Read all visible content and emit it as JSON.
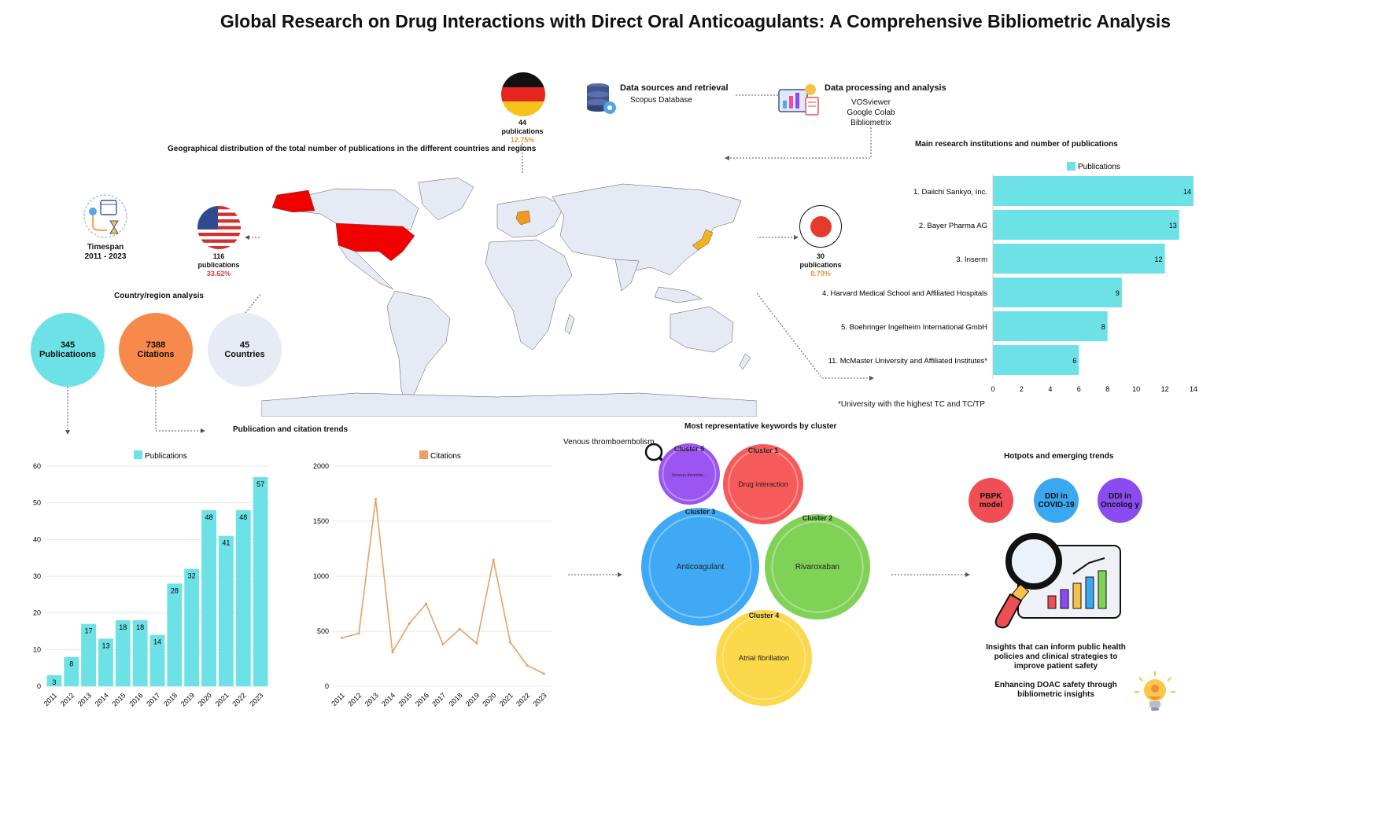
{
  "title": "Global Research on Drug Interactions with Direct Oral Anticoagulants: A Comprehensive Bibliometric Analysis",
  "data_sources": {
    "title": "Data sources and retrieval",
    "value": "Scopus Database"
  },
  "data_processing": {
    "title": "Data processing and analysis",
    "tools": [
      "VOSviewer",
      "Google Colab",
      "Bibliometrix"
    ]
  },
  "geo_title": "Geographical distribution of the total number of publications in the different countries and regions",
  "germany": {
    "count": "44",
    "label": "publications",
    "pct": "12.75%"
  },
  "usa": {
    "count": "116",
    "label": "publications",
    "pct": "33.62%"
  },
  "japan": {
    "count": "30",
    "label": "publications",
    "pct": "8.70%"
  },
  "timespan": {
    "label": "Timespan",
    "value": "2011 - 2023"
  },
  "country_analysis_title": "Country/region analysis",
  "stats": [
    {
      "value": "345",
      "label": "Publicatioons",
      "color": "#6de2e6"
    },
    {
      "value": "7388",
      "label": "Citations",
      "color": "#f7894a"
    },
    {
      "value": "45",
      "label": "Countries",
      "color": "#e6ebf5"
    }
  ],
  "trends_title": "Publication and citation trends",
  "institutions_title": "Main research institutions and number of publications",
  "institutions_note": "*University with the highest TC and TC/TP",
  "keywords_title": "Most representative keywords by cluster",
  "hotspots_title": "Hotpots and emerging trends",
  "hotspots": [
    {
      "label": "PBPK model",
      "color": "#f04e55"
    },
    {
      "label": "DDI in COVID-19",
      "color": "#3aa8f0"
    },
    {
      "label": "DDI in Oncolog y",
      "color": "#8a4cf0"
    }
  ],
  "insight_text": "Insights that can inform public health policies and clinical strategies to improve patient safety",
  "enhance_text": "Enhancing DOAC safety through bibliometric insights",
  "clusters": {
    "zoom_label": "Venous thromboembolism",
    "items": [
      {
        "cluster": "Cluster 5",
        "keyword": "Venous thrombo...",
        "color": "#9b55f2"
      },
      {
        "cluster": "Cluster 1",
        "keyword": "Drug interaction",
        "color": "#f75a5a"
      },
      {
        "cluster": "Cluster 3",
        "keyword": "Anticoagulant",
        "color": "#3fa9f5"
      },
      {
        "cluster": "Cluster 2",
        "keyword": "Rivaroxaban",
        "color": "#7fd255"
      },
      {
        "cluster": "Cluster 4",
        "keyword": "Atrial fibrillation",
        "color": "#fbd94a"
      }
    ]
  },
  "chart_data": [
    {
      "type": "bar",
      "orientation": "horizontal",
      "title": "Main research institutions and number of publications",
      "legend": "Publications",
      "legend_position": "top",
      "categories": [
        "1. Daiichi Sankyo, Inc.",
        "2. Bayer Pharma AG",
        "3. Inserm",
        "4. Harvard Medical School and Affiliated Hospitals",
        "5. Boehringer Ingelheim International GmbH",
        "11. McMaster University and Affiliated Institutes*"
      ],
      "values": [
        14,
        13,
        12,
        9,
        8,
        6
      ],
      "xlim": [
        0,
        14
      ],
      "xticks": [
        0,
        2,
        4,
        6,
        8,
        10,
        12,
        14
      ],
      "color": "#6de2e6"
    },
    {
      "type": "bar",
      "legend": "Publications",
      "legend_position": "top",
      "categories": [
        "2011",
        "2012",
        "2013",
        "2014",
        "2015",
        "2016",
        "2017",
        "2018",
        "2019",
        "2020",
        "2021",
        "2022",
        "2023"
      ],
      "values": [
        3,
        8,
        17,
        13,
        18,
        18,
        14,
        28,
        32,
        48,
        41,
        48,
        57
      ],
      "ylim": [
        0,
        60
      ],
      "yticks": [
        0,
        10,
        20,
        30,
        40,
        50,
        60
      ],
      "grid": true,
      "color": "#6de2e6"
    },
    {
      "type": "line",
      "legend": "Citations",
      "legend_position": "top",
      "categories": [
        "2011",
        "2012",
        "2013",
        "2014",
        "2015",
        "2016",
        "2017",
        "2018",
        "2019",
        "2020",
        "2021",
        "2022",
        "2023"
      ],
      "values": [
        440,
        480,
        1700,
        310,
        570,
        750,
        380,
        520,
        390,
        1150,
        400,
        190,
        115
      ],
      "ylim": [
        0,
        2000
      ],
      "yticks": [
        0,
        500,
        1000,
        1500,
        2000
      ],
      "grid": true,
      "color": "#e8a066"
    }
  ]
}
